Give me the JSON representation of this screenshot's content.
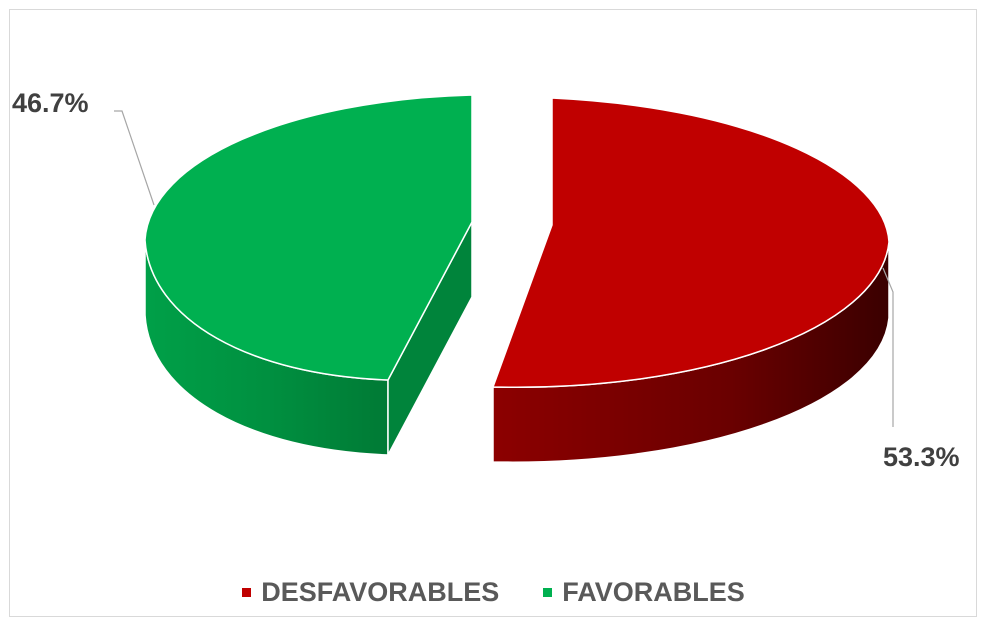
{
  "chart_data": {
    "type": "pie",
    "style": "3d-exploded",
    "title": "",
    "slices": [
      {
        "label": "DESFAVORABLES",
        "value": 53.3,
        "display": "53.3%",
        "color": "#c00000",
        "side_color": "#7a0000"
      },
      {
        "label": "FAVORABLES",
        "value": 46.7,
        "display": "46.7%",
        "color": "#00b050",
        "side_color": "#00843b"
      }
    ],
    "legend": {
      "position": "bottom"
    }
  }
}
